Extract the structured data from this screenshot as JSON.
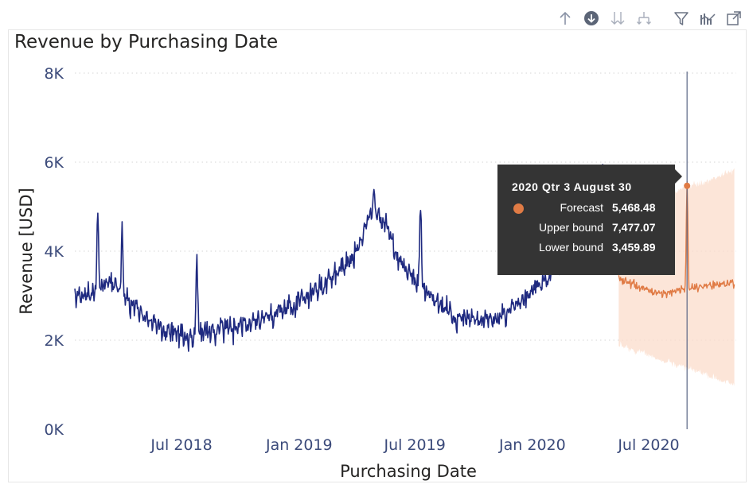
{
  "visual": {
    "title": "Revenue by Purchasing Date"
  },
  "toolbar": {
    "icons": [
      "drill-up-icon",
      "drill-down-mode-icon",
      "go-next-level-icon",
      "expand-hierarchy-icon",
      "filter-icon",
      "analytics-icon",
      "focus-mode-icon"
    ]
  },
  "colors": {
    "actual": "#1f2a80",
    "forecast": "#e07b45",
    "band": "#fbdccb",
    "gridline": "#d6d6d6",
    "crosshair": "#5a6585",
    "tooltip_bg": "#343434"
  },
  "chart_data": {
    "type": "line",
    "title": "Revenue by Purchasing Date",
    "xlabel": "Purchasing Date",
    "ylabel": "Revenue [USD]",
    "ylim": [
      0,
      8000
    ],
    "yticks": [
      0,
      2000,
      4000,
      6000,
      8000
    ],
    "ytick_labels": [
      "0K",
      "2K",
      "4K",
      "6K",
      "8K"
    ],
    "xlim": [
      "2018-01-15",
      "2020-11-15"
    ],
    "xticks": [
      "2018-07-01",
      "2019-01-01",
      "2019-07-01",
      "2020-01-01",
      "2020-07-01"
    ],
    "xtick_labels": [
      "Jul 2018",
      "Jan 2019",
      "Jul 2019",
      "Jan 2020",
      "Jul 2020"
    ],
    "grid": "horizontal-dotted",
    "series": [
      {
        "name": "",
        "role": "actual",
        "start": "2018-01-15",
        "end": "2020-04-30",
        "trend": [
          [
            "2018-01-15",
            2900
          ],
          [
            "2018-02-15",
            3100
          ],
          [
            "2018-03-15",
            3300
          ],
          [
            "2018-04-01",
            3000
          ],
          [
            "2018-05-01",
            2600
          ],
          [
            "2018-06-01",
            2250
          ],
          [
            "2018-07-01",
            2050
          ],
          [
            "2018-08-01",
            2150
          ],
          [
            "2018-09-01",
            2250
          ],
          [
            "2018-10-01",
            2350
          ],
          [
            "2018-11-01",
            2450
          ],
          [
            "2018-12-01",
            2650
          ],
          [
            "2019-01-01",
            2900
          ],
          [
            "2019-02-01",
            3200
          ],
          [
            "2019-03-01",
            3500
          ],
          [
            "2019-04-01",
            4000
          ],
          [
            "2019-04-20",
            4800
          ],
          [
            "2019-05-01",
            4900
          ],
          [
            "2019-05-20",
            4500
          ],
          [
            "2019-06-01",
            3900
          ],
          [
            "2019-07-01",
            3400
          ],
          [
            "2019-08-01",
            2900
          ],
          [
            "2019-09-01",
            2550
          ],
          [
            "2019-10-01",
            2450
          ],
          [
            "2019-11-01",
            2450
          ],
          [
            "2019-12-01",
            2650
          ],
          [
            "2020-01-01",
            3100
          ],
          [
            "2020-02-01",
            3500
          ],
          [
            "2020-03-01",
            3900
          ],
          [
            "2020-04-01",
            4300
          ],
          [
            "2020-04-30",
            4600
          ]
        ],
        "spikes": [
          [
            "2018-02-20",
            5000
          ],
          [
            "2018-03-30",
            4650
          ],
          [
            "2018-07-25",
            4050
          ],
          [
            "2019-04-28",
            5400
          ],
          [
            "2019-07-10",
            5200
          ],
          [
            "2020-04-20",
            6000
          ]
        ]
      },
      {
        "name": "",
        "role": "forecast",
        "start": "2020-05-15",
        "end": "2020-11-12",
        "trend": [
          [
            "2020-05-15",
            3400
          ],
          [
            "2020-06-15",
            3200
          ],
          [
            "2020-07-15",
            3050
          ],
          [
            "2020-08-15",
            3100
          ],
          [
            "2020-09-15",
            3200
          ],
          [
            "2020-10-15",
            3250
          ],
          [
            "2020-11-12",
            3300
          ]
        ],
        "spikes": [
          [
            "2020-08-30",
            5468.48
          ]
        ],
        "band": {
          "upper": 5800,
          "lower": 1000
        }
      }
    ],
    "highlight": {
      "date": "2020-08-30",
      "forecast": 5468.48,
      "upper": 7477.07,
      "lower": 3459.89
    }
  },
  "tooltip": {
    "title": "2020 Qtr 3 August 30",
    "rows": [
      {
        "label": "Forecast",
        "value": "5,468.48",
        "marker": true
      },
      {
        "label": "Upper bound",
        "value": "7,477.07",
        "marker": false
      },
      {
        "label": "Lower bound",
        "value": "3,459.89",
        "marker": false
      }
    ]
  }
}
